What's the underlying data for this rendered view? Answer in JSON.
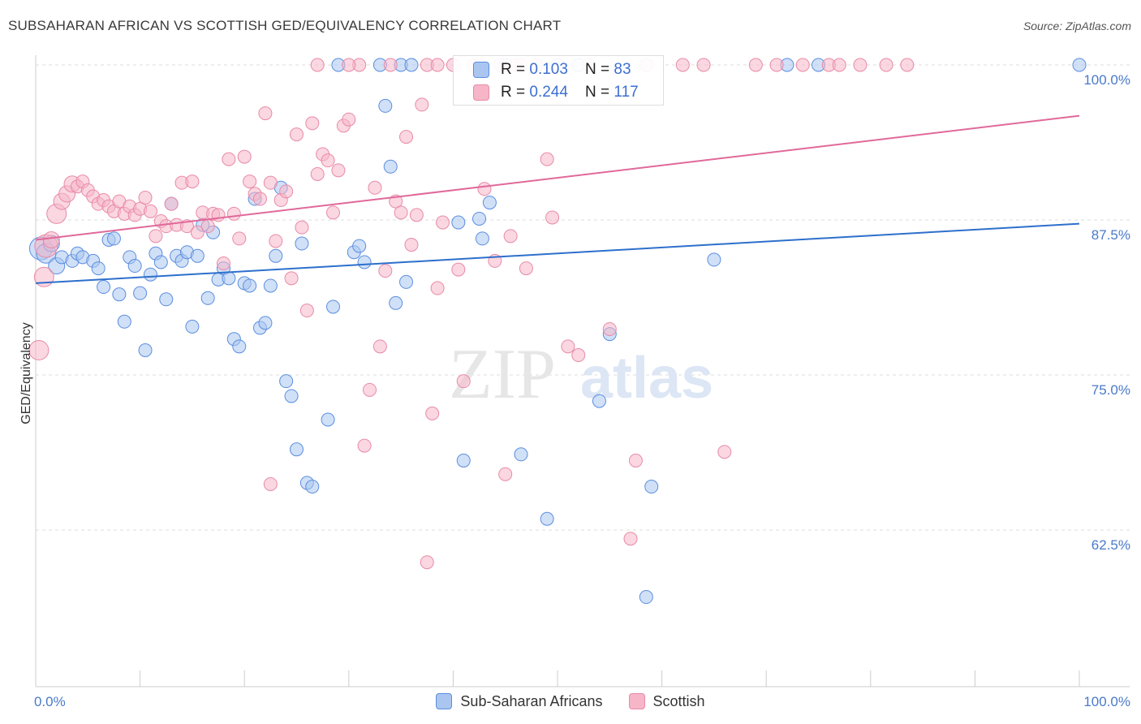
{
  "title": "SUBSAHARAN AFRICAN VS SCOTTISH GED/EQUIVALENCY CORRELATION CHART",
  "source": "Source: ZipAtlas.com",
  "watermark": {
    "zip": "ZIP",
    "atlas": "atlas"
  },
  "colors": {
    "blue_fill": "#aac6f0",
    "blue_stroke": "#5b8ee0",
    "blue_line": "#2d6fcc",
    "pink_fill": "#f6b6c8",
    "pink_stroke": "#e98aa8",
    "pink_line": "#e0699a",
    "tick_label": "#4a7ac9",
    "grid": "#dddddd"
  },
  "stats": [
    {
      "r_label": "R = ",
      "r_value": "0.103",
      "n_label": "N = ",
      "n_value": "83",
      "series": "blue"
    },
    {
      "r_label": "R = ",
      "r_value": "0.244",
      "n_label": "N = ",
      "n_value": "117",
      "series": "pink"
    }
  ],
  "legend": [
    {
      "label": "Sub-Saharan Africans",
      "series": "blue"
    },
    {
      "label": "Scottish",
      "series": "pink"
    }
  ],
  "chart_data": {
    "type": "scatter",
    "title": "SUBSAHARAN AFRICAN VS SCOTTISH GED/EQUIVALENCY CORRELATION CHART",
    "xlabel": "",
    "ylabel": "GED/Equivalency",
    "xlim": [
      0,
      100
    ],
    "ylim": [
      50,
      100
    ],
    "x_tick_labels": [
      "0.0%",
      "100.0%"
    ],
    "y_ticks": [
      {
        "value": 100,
        "label": "100.0%"
      },
      {
        "value": 87.5,
        "label": "87.5%"
      },
      {
        "value": 75,
        "label": "75.0%"
      },
      {
        "value": 62.5,
        "label": "62.5%"
      }
    ],
    "grid": true,
    "legend_position": "bottom-center",
    "series": [
      {
        "name": "Sub-Saharan Africans",
        "color": "#aac6f0",
        "trend": {
          "x": [
            0,
            100
          ],
          "y": [
            82.4,
            87.2
          ]
        },
        "points": [
          [
            0.5,
            85.2,
            4
          ],
          [
            1.0,
            84.8,
            3
          ],
          [
            1.5,
            85.6,
            2
          ],
          [
            2.0,
            83.8,
            2
          ],
          [
            2.5,
            84.5,
            1
          ],
          [
            3.5,
            84.2,
            1
          ],
          [
            4.0,
            84.8,
            1
          ],
          [
            4.5,
            84.5,
            1
          ],
          [
            5.5,
            84.2,
            1
          ],
          [
            6.0,
            83.6,
            1
          ],
          [
            6.5,
            82.1,
            1
          ],
          [
            7.0,
            85.9,
            1
          ],
          [
            7.5,
            86.0,
            1
          ],
          [
            8.0,
            81.5,
            1
          ],
          [
            8.5,
            79.3,
            1
          ],
          [
            9.0,
            84.5,
            1
          ],
          [
            9.5,
            83.8,
            1
          ],
          [
            10.0,
            81.6,
            1
          ],
          [
            10.5,
            77.0,
            1
          ],
          [
            11.0,
            83.1,
            1
          ],
          [
            11.5,
            84.8,
            1
          ],
          [
            12.0,
            84.1,
            1
          ],
          [
            12.5,
            81.1,
            1
          ],
          [
            13.0,
            88.8,
            1
          ],
          [
            13.5,
            84.6,
            1
          ],
          [
            14.0,
            84.2,
            1
          ],
          [
            14.5,
            84.9,
            1
          ],
          [
            15.0,
            78.9,
            1
          ],
          [
            15.5,
            84.6,
            1
          ],
          [
            16.0,
            87.1,
            1
          ],
          [
            16.5,
            81.2,
            1
          ],
          [
            17.0,
            86.5,
            1
          ],
          [
            17.5,
            82.7,
            1
          ],
          [
            18.0,
            83.6,
            1
          ],
          [
            18.5,
            82.8,
            1
          ],
          [
            19.0,
            77.9,
            1
          ],
          [
            19.5,
            77.3,
            1
          ],
          [
            20.0,
            82.4,
            1
          ],
          [
            20.5,
            82.2,
            1
          ],
          [
            21.0,
            89.2,
            1
          ],
          [
            21.5,
            78.8,
            1
          ],
          [
            22.0,
            79.2,
            1
          ],
          [
            22.5,
            82.2,
            1
          ],
          [
            23.0,
            84.6,
            1
          ],
          [
            23.5,
            90.1,
            1
          ],
          [
            24.0,
            74.5,
            1
          ],
          [
            24.5,
            73.3,
            1
          ],
          [
            25.0,
            69.0,
            1
          ],
          [
            25.5,
            85.6,
            1
          ],
          [
            26.0,
            66.3,
            1
          ],
          [
            26.5,
            66.0,
            1
          ],
          [
            28.0,
            71.4,
            1
          ],
          [
            28.5,
            80.5,
            1
          ],
          [
            29.0,
            100.0,
            1
          ],
          [
            30.5,
            84.9,
            1
          ],
          [
            31.0,
            85.4,
            1
          ],
          [
            31.5,
            84.1,
            1
          ],
          [
            33.0,
            100.0,
            1
          ],
          [
            33.5,
            96.7,
            1
          ],
          [
            34.0,
            91.8,
            1
          ],
          [
            34.5,
            80.8,
            1
          ],
          [
            35.0,
            100.0,
            1
          ],
          [
            35.5,
            82.5,
            1
          ],
          [
            36.0,
            100.0,
            1
          ],
          [
            40.5,
            87.3,
            1
          ],
          [
            41.0,
            68.1,
            1
          ],
          [
            42.5,
            87.6,
            1
          ],
          [
            42.8,
            86.0,
            1
          ],
          [
            43.5,
            88.9,
            1
          ],
          [
            45.0,
            100.0,
            1
          ],
          [
            46.5,
            68.6,
            1
          ],
          [
            49.0,
            63.4,
            1
          ],
          [
            54.0,
            72.9,
            1
          ],
          [
            55.0,
            78.3,
            1
          ],
          [
            58.5,
            57.1,
            1
          ],
          [
            59.0,
            66.0,
            1
          ],
          [
            65.0,
            84.3,
            1
          ],
          [
            72.0,
            100.0,
            1
          ],
          [
            75.0,
            100.0,
            1
          ],
          [
            100.0,
            100.0,
            1
          ],
          [
            50.0,
            100.0,
            1
          ],
          [
            52.0,
            100.0,
            1
          ],
          [
            48.0,
            100.0,
            1
          ]
        ]
      },
      {
        "name": "Scottish",
        "color": "#f6b6c8",
        "trend": {
          "x": [
            0,
            100
          ],
          "y": [
            85.9,
            95.9
          ]
        },
        "points": [
          [
            0.3,
            77.0,
            3
          ],
          [
            0.8,
            82.9,
            3
          ],
          [
            1.0,
            85.4,
            4
          ],
          [
            1.5,
            85.9,
            2
          ],
          [
            2.0,
            88.0,
            3
          ],
          [
            2.5,
            89.0,
            2
          ],
          [
            3.0,
            89.6,
            2
          ],
          [
            3.5,
            90.4,
            2
          ],
          [
            4.0,
            90.2,
            1
          ],
          [
            4.5,
            90.6,
            1
          ],
          [
            5.0,
            89.9,
            1
          ],
          [
            5.5,
            89.4,
            1
          ],
          [
            6.0,
            88.8,
            1
          ],
          [
            6.5,
            89.1,
            1
          ],
          [
            7.0,
            88.6,
            1
          ],
          [
            7.5,
            88.2,
            1
          ],
          [
            8.0,
            89.0,
            1
          ],
          [
            8.5,
            88.0,
            1
          ],
          [
            9.0,
            88.6,
            1
          ],
          [
            9.5,
            87.9,
            1
          ],
          [
            10.0,
            88.4,
            1
          ],
          [
            10.5,
            89.3,
            1
          ],
          [
            11.0,
            88.2,
            1
          ],
          [
            11.5,
            86.2,
            1
          ],
          [
            12.0,
            87.4,
            1
          ],
          [
            12.5,
            87.0,
            1
          ],
          [
            13.0,
            88.8,
            1
          ],
          [
            13.5,
            87.1,
            1
          ],
          [
            14.0,
            90.5,
            1
          ],
          [
            14.5,
            87.0,
            1
          ],
          [
            15.0,
            90.6,
            1
          ],
          [
            15.5,
            86.5,
            1
          ],
          [
            16.0,
            88.1,
            1
          ],
          [
            16.5,
            87.0,
            1
          ],
          [
            17.0,
            88.0,
            1
          ],
          [
            17.5,
            87.9,
            1
          ],
          [
            18.0,
            84.0,
            1
          ],
          [
            18.5,
            92.4,
            1
          ],
          [
            19.0,
            88.0,
            1
          ],
          [
            19.5,
            86.0,
            1
          ],
          [
            20.0,
            92.6,
            1
          ],
          [
            20.5,
            90.6,
            1
          ],
          [
            21.0,
            89.6,
            1
          ],
          [
            21.5,
            89.2,
            1
          ],
          [
            22.0,
            96.1,
            1
          ],
          [
            22.5,
            90.5,
            1
          ],
          [
            23.0,
            85.8,
            1
          ],
          [
            23.5,
            89.1,
            1
          ],
          [
            24.0,
            89.8,
            1
          ],
          [
            24.5,
            82.8,
            1
          ],
          [
            25.0,
            94.4,
            1
          ],
          [
            25.5,
            86.9,
            1
          ],
          [
            26.0,
            80.2,
            1
          ],
          [
            26.5,
            95.3,
            1
          ],
          [
            27.0,
            91.2,
            1
          ],
          [
            27.5,
            92.8,
            1
          ],
          [
            28.0,
            92.3,
            1
          ],
          [
            28.5,
            88.1,
            1
          ],
          [
            29.0,
            91.5,
            1
          ],
          [
            29.5,
            95.1,
            1
          ],
          [
            30.0,
            95.6,
            1
          ],
          [
            31.0,
            100.0,
            1
          ],
          [
            31.5,
            69.3,
            1
          ],
          [
            32.0,
            73.8,
            1
          ],
          [
            32.5,
            90.1,
            1
          ],
          [
            33.0,
            77.3,
            1
          ],
          [
            33.5,
            83.4,
            1
          ],
          [
            34.0,
            100.0,
            1
          ],
          [
            34.5,
            89.0,
            1
          ],
          [
            35.0,
            88.1,
            1
          ],
          [
            35.5,
            94.2,
            1
          ],
          [
            36.0,
            85.5,
            1
          ],
          [
            36.5,
            87.9,
            1
          ],
          [
            37.0,
            96.8,
            1
          ],
          [
            37.5,
            100.0,
            1
          ],
          [
            38.0,
            71.9,
            1
          ],
          [
            38.5,
            82.0,
            1
          ],
          [
            39.0,
            87.3,
            1
          ],
          [
            40.0,
            100.0,
            1
          ],
          [
            40.5,
            83.5,
            1
          ],
          [
            41.0,
            74.5,
            1
          ],
          [
            42.0,
            100.0,
            1
          ],
          [
            42.5,
            100.0,
            1
          ],
          [
            43.0,
            90.0,
            1
          ],
          [
            44.0,
            84.2,
            1
          ],
          [
            45.0,
            67.0,
            1
          ],
          [
            45.5,
            86.2,
            1
          ],
          [
            46.0,
            100.0,
            1
          ],
          [
            47.0,
            83.6,
            1
          ],
          [
            48.0,
            100.0,
            1
          ],
          [
            49.0,
            92.4,
            1
          ],
          [
            49.5,
            87.7,
            1
          ],
          [
            51.0,
            77.3,
            1
          ],
          [
            52.0,
            76.6,
            1
          ],
          [
            53.0,
            100.0,
            1
          ],
          [
            55.0,
            78.7,
            1
          ],
          [
            57.0,
            61.8,
            1
          ],
          [
            57.5,
            68.1,
            1
          ],
          [
            58.5,
            100.0,
            1
          ],
          [
            62.0,
            100.0,
            1
          ],
          [
            64.0,
            100.0,
            1
          ],
          [
            66.0,
            68.8,
            1
          ],
          [
            69.0,
            100.0,
            1
          ],
          [
            71.0,
            100.0,
            1
          ],
          [
            73.5,
            100.0,
            1
          ],
          [
            76.0,
            100.0,
            1
          ],
          [
            77.0,
            100.0,
            1
          ],
          [
            79.0,
            100.0,
            1
          ],
          [
            81.5,
            100.0,
            1
          ],
          [
            83.5,
            100.0,
            1
          ],
          [
            22.5,
            66.2,
            1
          ],
          [
            37.5,
            59.9,
            1
          ],
          [
            30.0,
            100.0,
            1
          ],
          [
            27.0,
            100.0,
            1
          ],
          [
            44.5,
            100.0,
            1
          ],
          [
            38.5,
            100.0,
            1
          ],
          [
            46.5,
            100.0,
            1
          ]
        ]
      }
    ]
  }
}
